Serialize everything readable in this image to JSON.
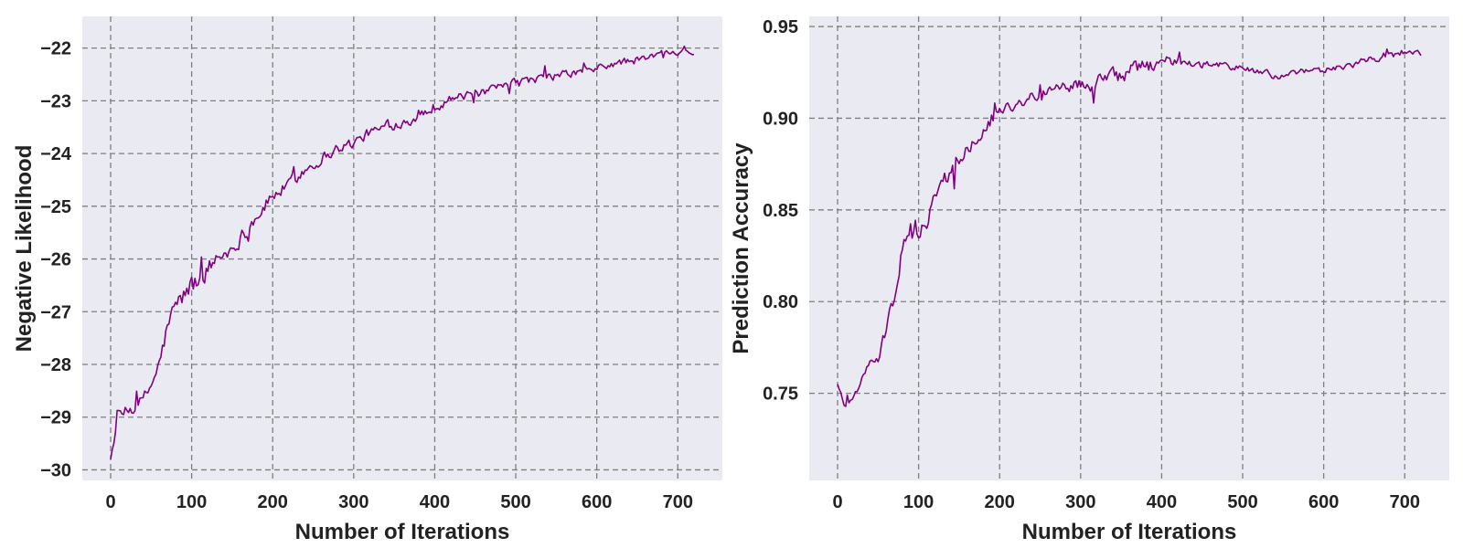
{
  "chart_data": [
    {
      "type": "line",
      "title": "",
      "xlabel": "Number of Iterations",
      "ylabel": "Negative Likelihood",
      "xlim": [
        -35,
        755
      ],
      "ylim": [
        -30.2,
        -21.4
      ],
      "xticks": [
        0,
        100,
        200,
        300,
        400,
        500,
        600,
        700
      ],
      "yticks": [
        -30,
        -29,
        -28,
        -27,
        -26,
        -25,
        -24,
        -23,
        -22
      ],
      "xtick_labels": [
        "0",
        "100",
        "200",
        "300",
        "400",
        "500",
        "600",
        "700"
      ],
      "ytick_labels": [
        "−30",
        "−29",
        "−28",
        "−27",
        "−26",
        "−25",
        "−24",
        "−23",
        "−22"
      ],
      "grid": true,
      "colors": {
        "line": "#800080",
        "background": "#eaeaf2",
        "grid": "#7f7f7f"
      },
      "series": [
        {
          "x": [
            0,
            5,
            10,
            20,
            30,
            40,
            50,
            60,
            70,
            80,
            90,
            100,
            110,
            120,
            130,
            140,
            150,
            160,
            170,
            180,
            190,
            200,
            220,
            240,
            260,
            280,
            300,
            320,
            340,
            360,
            380,
            400,
            420,
            440,
            460,
            480,
            500,
            520,
            540,
            560,
            580,
            600,
            620,
            640,
            660,
            680,
            700,
            710,
            720
          ],
          "y": [
            -29.8,
            -29.3,
            -29.0,
            -28.9,
            -28.8,
            -28.7,
            -28.4,
            -28.0,
            -27.3,
            -26.9,
            -26.7,
            -26.5,
            -26.4,
            -26.2,
            -26.0,
            -25.9,
            -25.8,
            -25.6,
            -25.4,
            -25.2,
            -25.0,
            -24.8,
            -24.6,
            -24.3,
            -24.1,
            -23.9,
            -23.8,
            -23.6,
            -23.5,
            -23.4,
            -23.3,
            -23.1,
            -22.95,
            -22.9,
            -22.85,
            -22.75,
            -22.65,
            -22.6,
            -22.55,
            -22.5,
            -22.45,
            -22.4,
            -22.3,
            -22.25,
            -22.2,
            -22.1,
            -22.05,
            -22.0,
            -22.1
          ],
          "noise": [
            0.0,
            0.25,
            0.2,
            0.2,
            0.2,
            0.22,
            0.22,
            0.25,
            0.28,
            0.3,
            0.3,
            0.35,
            0.35,
            0.3,
            0.28,
            0.25,
            0.25,
            0.22,
            0.22,
            0.2,
            0.2,
            0.2,
            0.2,
            0.18,
            0.18,
            0.16,
            0.15,
            0.15,
            0.15,
            0.15,
            0.15,
            0.18,
            0.12,
            0.12,
            0.12,
            0.12,
            0.12,
            0.12,
            0.12,
            0.12,
            0.12,
            0.12,
            0.12,
            0.12,
            0.1,
            0.1,
            0.1,
            0.1,
            0.1
          ]
        }
      ]
    },
    {
      "type": "line",
      "title": "",
      "xlabel": "Number of Iterations",
      "ylabel": "Prediction Accuracy",
      "xlim": [
        -35,
        755
      ],
      "ylim": [
        0.7025,
        0.9555
      ],
      "xticks": [
        0,
        100,
        200,
        300,
        400,
        500,
        600,
        700
      ],
      "yticks": [
        0.75,
        0.8,
        0.85,
        0.9,
        0.95
      ],
      "xtick_labels": [
        "0",
        "100",
        "200",
        "300",
        "400",
        "500",
        "600",
        "700"
      ],
      "ytick_labels": [
        "0.75",
        "0.80",
        "0.85",
        "0.90",
        "0.95"
      ],
      "grid": true,
      "colors": {
        "line": "#800080",
        "background": "#eaeaf2",
        "grid": "#7f7f7f"
      },
      "series": [
        {
          "x": [
            0,
            5,
            10,
            20,
            30,
            40,
            50,
            60,
            70,
            80,
            90,
            100,
            110,
            120,
            130,
            140,
            150,
            160,
            170,
            180,
            190,
            200,
            220,
            240,
            260,
            280,
            300,
            320,
            340,
            360,
            380,
            400,
            420,
            440,
            460,
            480,
            500,
            520,
            540,
            560,
            580,
            600,
            620,
            640,
            660,
            680,
            700,
            710,
            720
          ],
          "y": [
            0.755,
            0.745,
            0.748,
            0.75,
            0.758,
            0.765,
            0.768,
            0.785,
            0.805,
            0.825,
            0.835,
            0.84,
            0.845,
            0.855,
            0.865,
            0.872,
            0.878,
            0.885,
            0.89,
            0.895,
            0.9,
            0.905,
            0.908,
            0.912,
            0.915,
            0.918,
            0.918,
            0.92,
            0.922,
            0.925,
            0.928,
            0.932,
            0.93,
            0.928,
            0.93,
            0.928,
            0.928,
            0.925,
            0.923,
            0.924,
            0.925,
            0.926,
            0.928,
            0.93,
            0.932,
            0.935,
            0.936,
            0.936,
            0.935
          ],
          "noise": [
            0.003,
            0.01,
            0.012,
            0.006,
            0.004,
            0.004,
            0.005,
            0.006,
            0.01,
            0.012,
            0.012,
            0.01,
            0.009,
            0.008,
            0.008,
            0.008,
            0.007,
            0.007,
            0.006,
            0.006,
            0.006,
            0.005,
            0.005,
            0.005,
            0.005,
            0.005,
            0.006,
            0.007,
            0.007,
            0.007,
            0.007,
            0.005,
            0.004,
            0.004,
            0.003,
            0.003,
            0.003,
            0.003,
            0.003,
            0.003,
            0.003,
            0.003,
            0.003,
            0.003,
            0.003,
            0.003,
            0.003,
            0.003,
            0.004
          ]
        }
      ]
    }
  ]
}
